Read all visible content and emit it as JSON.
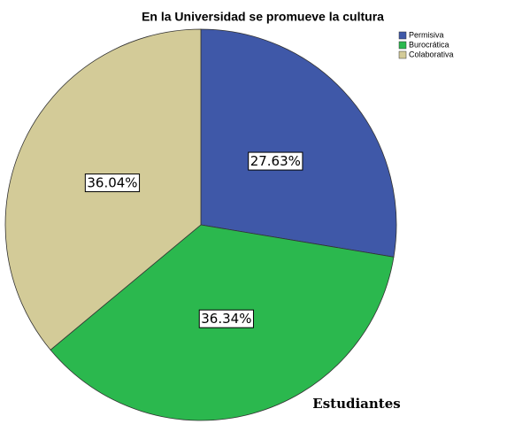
{
  "chart_data": {
    "type": "pie",
    "title": "En la Universidad se promueve la cultura",
    "categories": [
      "Permisiva",
      "Burocrática",
      "Colaborativa"
    ],
    "values": [
      27.63,
      36.34,
      36.04
    ],
    "value_labels": [
      "27.63%",
      "36.34%",
      "36.04%"
    ],
    "colors": [
      "#3f58a8",
      "#2bb84e",
      "#d3cb98"
    ],
    "annotation": "Estudiantes"
  }
}
